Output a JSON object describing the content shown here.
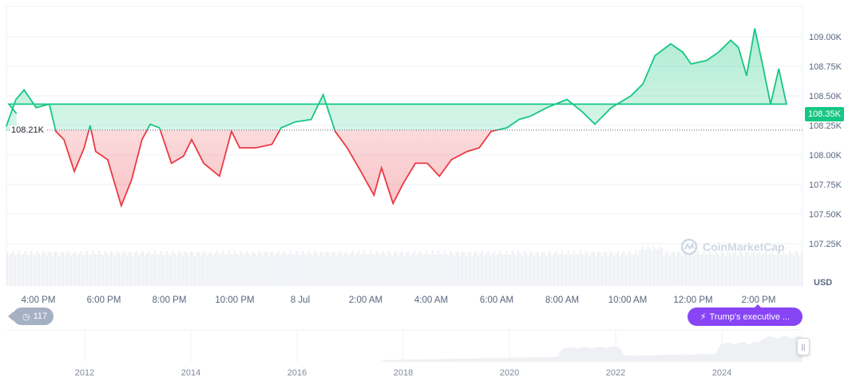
{
  "chart_data": {
    "type": "line",
    "currency_label": "USD",
    "baseline": 108.21,
    "baseline_label": "108.21K",
    "current_label": "108.35K",
    "colors": {
      "up": "#16c784",
      "down": "#ea3943",
      "accent": "#8745f5"
    },
    "ylim": [
      107.1,
      109.3
    ],
    "y_ticks": [
      {
        "v": 109.0,
        "label": "109.00K"
      },
      {
        "v": 108.75,
        "label": "108.75K"
      },
      {
        "v": 108.5,
        "label": "108.50K"
      },
      {
        "v": 108.25,
        "label": "108.25K"
      },
      {
        "v": 108.0,
        "label": "108.00K"
      },
      {
        "v": 107.75,
        "label": "107.75K"
      },
      {
        "v": 107.5,
        "label": "107.50K"
      },
      {
        "v": 107.25,
        "label": "107.25K"
      }
    ],
    "x_ticks": [
      {
        "t": "16:00",
        "label": "4:00 PM"
      },
      {
        "t": "18:00",
        "label": "6:00 PM"
      },
      {
        "t": "20:00",
        "label": "8:00 PM"
      },
      {
        "t": "22:00",
        "label": "10:00 PM"
      },
      {
        "t": "00:00",
        "label": "8 Jul"
      },
      {
        "t": "02:00",
        "label": "2:00 AM"
      },
      {
        "t": "04:00",
        "label": "4:00 AM"
      },
      {
        "t": "06:00",
        "label": "6:00 AM"
      },
      {
        "t": "08:00",
        "label": "8:00 AM"
      },
      {
        "t": "10:00",
        "label": "10:00 AM"
      },
      {
        "t": "12:00",
        "label": "12:00 PM"
      },
      {
        "t": "14:00",
        "label": "2:00 PM"
      }
    ],
    "points": [
      [
        "15:01",
        108.24
      ],
      [
        "15:19",
        108.47
      ],
      [
        "15:34",
        108.55
      ],
      [
        "15:56",
        108.4
      ],
      [
        "16:20",
        108.43
      ],
      [
        "16:32",
        108.2
      ],
      [
        "16:47",
        108.13
      ],
      [
        "17:06",
        107.86
      ],
      [
        "17:24",
        108.06
      ],
      [
        "17:35",
        108.25
      ],
      [
        "17:45",
        108.03
      ],
      [
        "18:07",
        107.96
      ],
      [
        "18:32",
        107.57
      ],
      [
        "18:51",
        107.79
      ],
      [
        "19:10",
        108.13
      ],
      [
        "19:25",
        108.26
      ],
      [
        "19:42",
        108.23
      ],
      [
        "20:04",
        107.93
      ],
      [
        "20:26",
        107.99
      ],
      [
        "20:41",
        108.13
      ],
      [
        "21:03",
        107.93
      ],
      [
        "21:32",
        107.82
      ],
      [
        "21:54",
        108.2
      ],
      [
        "22:09",
        108.06
      ],
      [
        "22:38",
        108.06
      ],
      [
        "23:08",
        108.09
      ],
      [
        "23:25",
        108.23
      ],
      [
        "23:51",
        108.28
      ],
      [
        "00:20",
        108.3
      ],
      [
        "00:42",
        108.51
      ],
      [
        "01:04",
        108.2
      ],
      [
        "01:26",
        108.06
      ],
      [
        "01:51",
        107.86
      ],
      [
        "02:15",
        107.66
      ],
      [
        "02:29",
        107.89
      ],
      [
        "02:50",
        107.59
      ],
      [
        "03:09",
        107.76
      ],
      [
        "03:31",
        107.93
      ],
      [
        "03:53",
        107.93
      ],
      [
        "04:15",
        107.82
      ],
      [
        "04:37",
        107.96
      ],
      [
        "05:06",
        108.03
      ],
      [
        "05:28",
        108.06
      ],
      [
        "05:50",
        108.2
      ],
      [
        "06:19",
        108.23
      ],
      [
        "06:41",
        108.3
      ],
      [
        "07:03",
        108.33
      ],
      [
        "07:32",
        108.4
      ],
      [
        "08:09",
        108.47
      ],
      [
        "08:38",
        108.36
      ],
      [
        "09:00",
        108.26
      ],
      [
        "09:30",
        108.4
      ],
      [
        "10:06",
        108.5
      ],
      [
        "10:28",
        108.6
      ],
      [
        "10:50",
        108.84
      ],
      [
        "11:19",
        108.94
      ],
      [
        "11:41",
        108.87
      ],
      [
        "11:56",
        108.77
      ],
      [
        "12:25",
        108.8
      ],
      [
        "12:47",
        108.87
      ],
      [
        "13:09",
        108.97
      ],
      [
        "13:23",
        108.91
      ],
      [
        "13:38",
        108.67
      ],
      [
        "13:53",
        109.07
      ],
      [
        "14:07",
        108.77
      ],
      [
        "14:22",
        108.43
      ],
      [
        "14:37",
        108.73
      ],
      [
        "14:51",
        108.43
      ],
      [
        "15:06",
        108.43
      ],
      [
        "15:20",
        108.35
      ]
    ],
    "navigator_years": [
      "2012",
      "2014",
      "2016",
      "2018",
      "2020",
      "2022",
      "2024"
    ]
  },
  "history_badge": {
    "icon": "history-icon",
    "count": "117"
  },
  "news_badge": {
    "icon": "lightning-icon",
    "label": "Trump's executive ..."
  },
  "watermark": "CoinMarketCap"
}
